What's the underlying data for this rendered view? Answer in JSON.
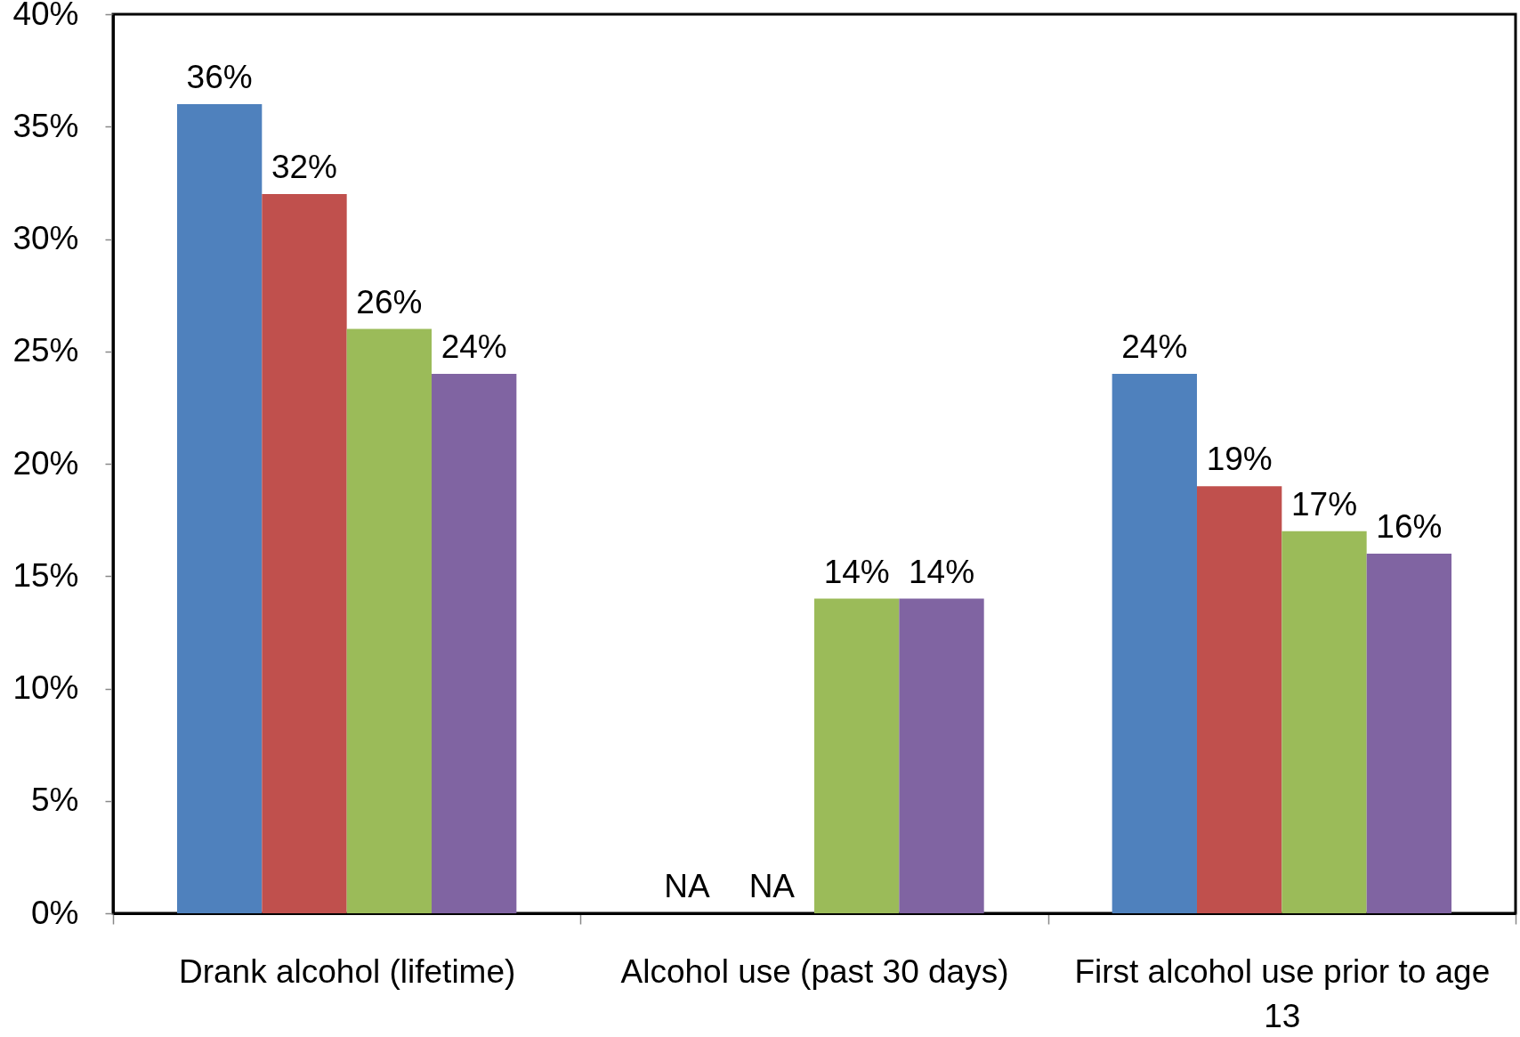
{
  "chart_data": {
    "type": "bar",
    "categories": [
      "Drank alcohol (lifetime)",
      "Alcohol use (past 30 days)",
      "First alcohol use prior to age 13"
    ],
    "series": [
      {
        "color": "#4f81bd",
        "values": [
          36,
          null,
          24
        ],
        "value_labels": [
          "36%",
          "NA",
          "24%"
        ]
      },
      {
        "color": "#c0504d",
        "values": [
          32,
          null,
          19
        ],
        "value_labels": [
          "32%",
          "NA",
          "19%"
        ]
      },
      {
        "color": "#9bbb59",
        "values": [
          26,
          14,
          17
        ],
        "value_labels": [
          "26%",
          "14%",
          "17%"
        ]
      },
      {
        "color": "#8064a2",
        "values": [
          24,
          14,
          16
        ],
        "value_labels": [
          "24%",
          "14%",
          "16%"
        ]
      }
    ],
    "ylim": [
      0,
      40
    ],
    "yticks": [
      {
        "value": 0,
        "label": "0%"
      },
      {
        "value": 5,
        "label": "5%"
      },
      {
        "value": 10,
        "label": "10%"
      },
      {
        "value": 15,
        "label": "15%"
      },
      {
        "value": 20,
        "label": "20%"
      },
      {
        "value": 25,
        "label": "25%"
      },
      {
        "value": 30,
        "label": "30%"
      },
      {
        "value": 35,
        "label": "35%"
      },
      {
        "value": 40,
        "label": "40%"
      }
    ],
    "grid": false
  }
}
